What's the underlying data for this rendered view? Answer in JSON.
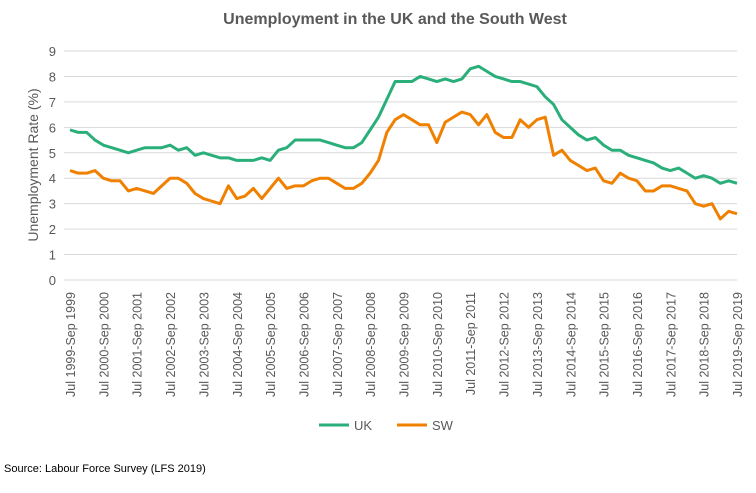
{
  "chart_data": {
    "type": "line",
    "title": "Unemployment in the UK and the South West",
    "xlabel": "",
    "ylabel": "Unemployment Rate (%)",
    "ylim": [
      0,
      9
    ],
    "yticks": [
      "0",
      "1",
      "2",
      "3",
      "4",
      "5",
      "6",
      "7",
      "8",
      "9"
    ],
    "grid": true,
    "legend_position": "bottom",
    "xtick_labels": [
      "Jul 1999-Sep 1999",
      "Jul 2000-Sep 2000",
      "Jul 2001-Sep 2001",
      "Jul 2002-Sep 2002",
      "Jul 2003-Sep 2003",
      "Jul 2004-Sep 2004",
      "Jul 2005-Sep 2005",
      "Jul 2006-Sep 2006",
      "Jul 2007-Sep 2007",
      "Jul 2008-Sep 2008",
      "Jul 2009-Sep 2009",
      "Jul 2010-Sep 2010",
      "Jul 2011-Sep 2011",
      "Jul 2012-Sep 2012",
      "Jul 2013-Sep 2013",
      "Jul 2014-Sep 2014",
      "Jul 2015-Sep 2015",
      "Jul 2016-Sep 2016",
      "Jul 2017-Sep 2017",
      "Jul 2018-Sep 2018",
      "Jul 2019-Sep 2019"
    ],
    "series": [
      {
        "name": "UK",
        "color": "#2aaf7a",
        "values": [
          5.9,
          5.8,
          5.8,
          5.5,
          5.3,
          5.2,
          5.1,
          5.0,
          5.1,
          5.2,
          5.2,
          5.2,
          5.3,
          5.1,
          5.2,
          4.9,
          5.0,
          4.9,
          4.8,
          4.8,
          4.7,
          4.7,
          4.7,
          4.8,
          4.7,
          5.1,
          5.2,
          5.5,
          5.5,
          5.5,
          5.5,
          5.4,
          5.3,
          5.2,
          5.2,
          5.4,
          5.9,
          6.4,
          7.1,
          7.8,
          7.8,
          7.8,
          8.0,
          7.9,
          7.8,
          7.9,
          7.8,
          7.9,
          8.3,
          8.4,
          8.2,
          8.0,
          7.9,
          7.8,
          7.8,
          7.7,
          7.6,
          7.2,
          6.9,
          6.3,
          6.0,
          5.7,
          5.5,
          5.6,
          5.3,
          5.1,
          5.1,
          4.9,
          4.8,
          4.7,
          4.6,
          4.4,
          4.3,
          4.4,
          4.2,
          4.0,
          4.1,
          4.0,
          3.8,
          3.9,
          3.8
        ]
      },
      {
        "name": "SW",
        "color": "#f08000",
        "values": [
          4.3,
          4.2,
          4.2,
          4.3,
          4.0,
          3.9,
          3.9,
          3.5,
          3.6,
          3.5,
          3.4,
          3.7,
          4.0,
          4.0,
          3.8,
          3.4,
          3.2,
          3.1,
          3.0,
          3.7,
          3.2,
          3.3,
          3.6,
          3.2,
          3.6,
          4.0,
          3.6,
          3.7,
          3.7,
          3.9,
          4.0,
          4.0,
          3.8,
          3.6,
          3.6,
          3.8,
          4.2,
          4.7,
          5.8,
          6.3,
          6.5,
          6.3,
          6.1,
          6.1,
          5.4,
          6.2,
          6.4,
          6.6,
          6.5,
          6.1,
          6.5,
          5.8,
          5.6,
          5.6,
          6.3,
          6.0,
          6.3,
          6.4,
          4.9,
          5.1,
          4.7,
          4.5,
          4.3,
          4.4,
          3.9,
          3.8,
          4.2,
          4.0,
          3.9,
          3.5,
          3.5,
          3.7,
          3.7,
          3.6,
          3.5,
          3.0,
          2.9,
          3.0,
          2.4,
          2.7,
          2.6
        ]
      }
    ]
  },
  "source": "Source: Labour Force Survey (LFS 2019)"
}
